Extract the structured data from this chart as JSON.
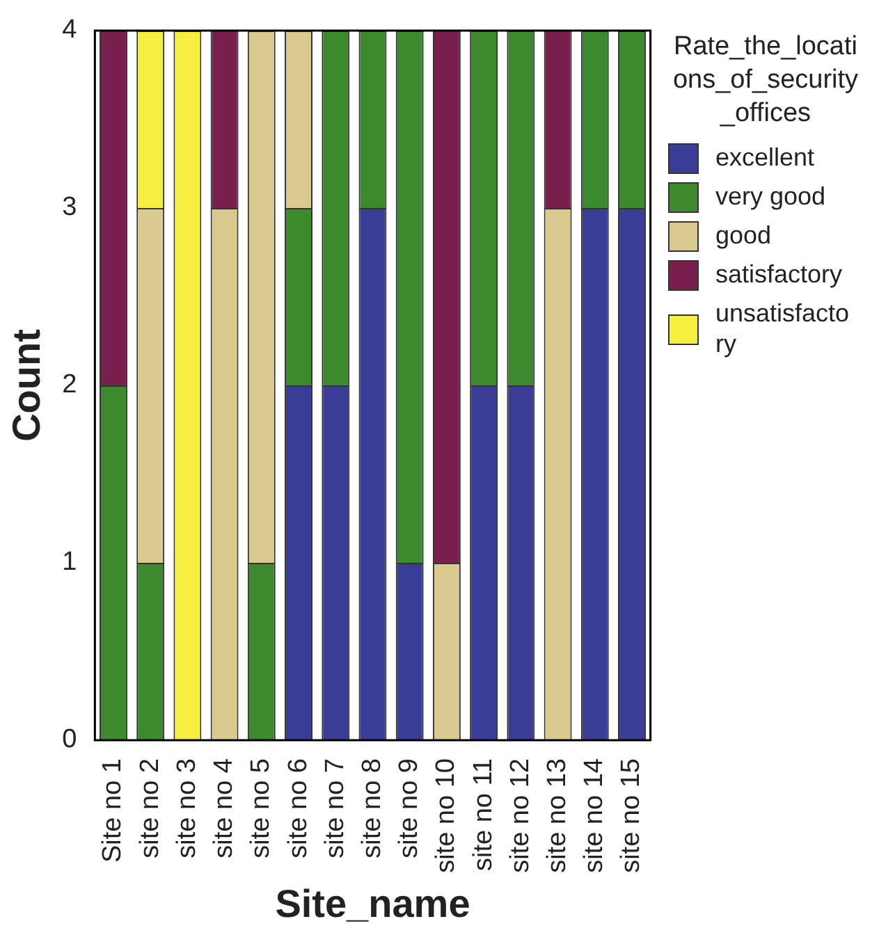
{
  "chart_data": {
    "type": "bar",
    "stacked": true,
    "xlabel": "Site_name",
    "ylabel": "Count",
    "legend_title": "Rate_the_locations_of_security_offices",
    "legend": "right",
    "grid": false,
    "categories": [
      "Site no 1",
      "site no 2",
      "site no 3",
      "site no 4",
      "site no 5",
      "site no 6",
      "site no 7",
      "site no 8",
      "site no 9",
      "site no 10",
      "site no 11",
      "site no 12",
      "site no 13",
      "site no 14",
      "site no 15"
    ],
    "ylim": [
      0,
      4
    ],
    "yticks": [
      0,
      1,
      2,
      3,
      4
    ],
    "series": [
      {
        "name": "excellent",
        "color": "#3a3d96",
        "values": [
          0,
          0,
          0,
          0,
          0,
          2,
          2,
          3,
          1,
          0,
          2,
          2,
          0,
          3,
          3
        ]
      },
      {
        "name": "very good",
        "color": "#3d8a2e",
        "values": [
          2,
          1,
          0,
          0,
          1,
          1,
          2,
          1,
          3,
          0,
          2,
          2,
          0,
          1,
          1
        ]
      },
      {
        "name": "good",
        "color": "#d9c98f",
        "values": [
          0,
          2,
          0,
          3,
          3,
          1,
          0,
          0,
          0,
          1,
          0,
          0,
          3,
          0,
          0
        ]
      },
      {
        "name": "satisfactory",
        "color": "#7a1f4e",
        "values": [
          2,
          0,
          0,
          1,
          0,
          0,
          0,
          0,
          0,
          3,
          0,
          0,
          1,
          0,
          0
        ]
      },
      {
        "name": "unsatisfactory",
        "color": "#f5ee3f",
        "values": [
          0,
          1,
          4,
          0,
          0,
          0,
          0,
          0,
          0,
          0,
          0,
          0,
          0,
          0,
          0
        ]
      }
    ]
  }
}
